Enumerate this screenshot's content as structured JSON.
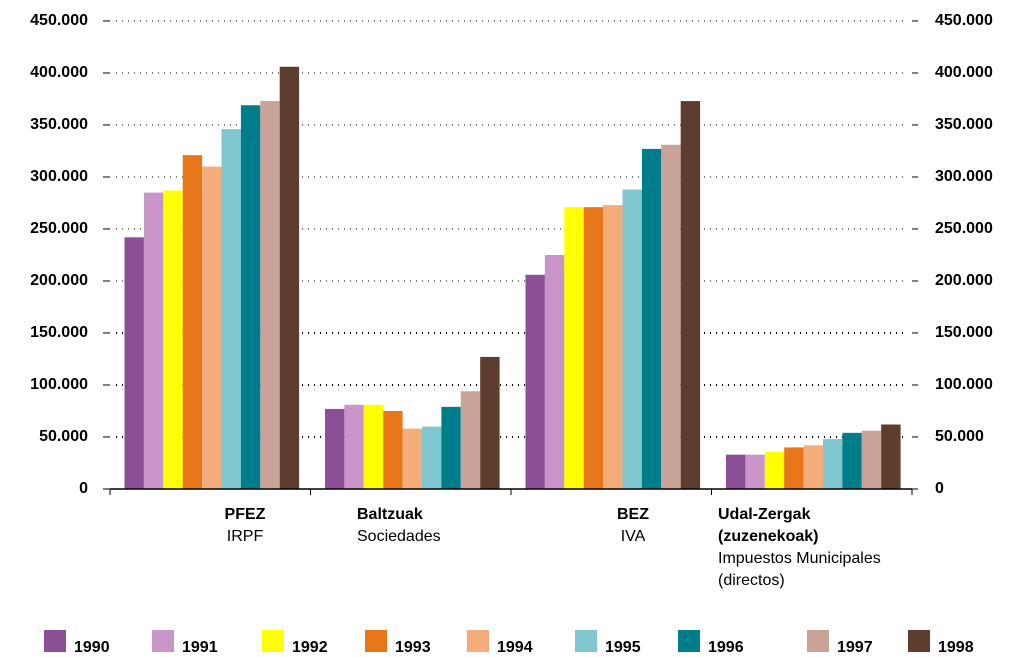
{
  "chart_data": {
    "type": "bar",
    "categories": [
      {
        "name": [
          "PFEZ"
        ],
        "subtitle": [
          "IRPF"
        ]
      },
      {
        "name": [
          "Baltzuak"
        ],
        "subtitle": [
          "Sociedades"
        ]
      },
      {
        "name": [
          "BEZ"
        ],
        "subtitle": [
          "IVA"
        ]
      },
      {
        "name": [
          "Udal-Zergak",
          "(zuzenekoak)"
        ],
        "subtitle": [
          "Impuestos Municipales",
          "(directos)"
        ]
      }
    ],
    "series": [
      {
        "name": "1990",
        "color": "#8b4f96",
        "values": [
          242000,
          77000,
          206000,
          33000
        ]
      },
      {
        "name": "1991",
        "color": "#c994c7",
        "values": [
          285000,
          81000,
          225000,
          33000
        ]
      },
      {
        "name": "1992",
        "color": "#ffff00",
        "values": [
          287000,
          81000,
          271000,
          36000
        ]
      },
      {
        "name": "1993",
        "color": "#e8761a",
        "values": [
          321000,
          75000,
          271000,
          40000
        ]
      },
      {
        "name": "1994",
        "color": "#f4ad7a",
        "values": [
          310000,
          58000,
          273000,
          42000
        ]
      },
      {
        "name": "1995",
        "color": "#80c6ce",
        "values": [
          346000,
          60000,
          288000,
          48000
        ]
      },
      {
        "name": "1996",
        "color": "#007d8a",
        "values": [
          369000,
          79000,
          327000,
          54000
        ]
      },
      {
        "name": "1997",
        "color": "#c9a397",
        "values": [
          373000,
          94000,
          331000,
          56000
        ]
      },
      {
        "name": "1998",
        "color": "#5c3d2e",
        "values": [
          406000,
          127000,
          373000,
          62000
        ]
      }
    ],
    "ylim": [
      0,
      450000
    ],
    "yticks": [
      0,
      {
        "value": 50000,
        "label": "50.000"
      },
      {
        "value": 100000,
        "label": "100.000"
      },
      {
        "value": 150000,
        "label": "150.000"
      },
      {
        "value": 200000,
        "label": "200.000"
      },
      {
        "value": 250000,
        "label": "250.000"
      },
      {
        "value": 300000,
        "label": "300.000"
      },
      {
        "value": 350000,
        "label": "350.000"
      },
      {
        "value": 400000,
        "label": "400.000"
      },
      {
        "value": 450000,
        "label": "450.000"
      }
    ],
    "y2lim": [
      0,
      450000
    ],
    "y2ticks": [
      0,
      {
        "value": 50000,
        "label": "50.000"
      },
      {
        "value": 100000,
        "label": "100.000"
      },
      {
        "value": 150000,
        "label": "150.000"
      },
      {
        "value": 200000,
        "label": "200.000"
      },
      {
        "value": 250000,
        "label": "250.000"
      },
      {
        "value": 300000,
        "label": "300.000"
      },
      {
        "value": 350000,
        "label": "350.000"
      },
      {
        "value": 400000,
        "label": "400.000"
      },
      {
        "value": 450000,
        "label": "450.000"
      }
    ],
    "grid": true
  }
}
